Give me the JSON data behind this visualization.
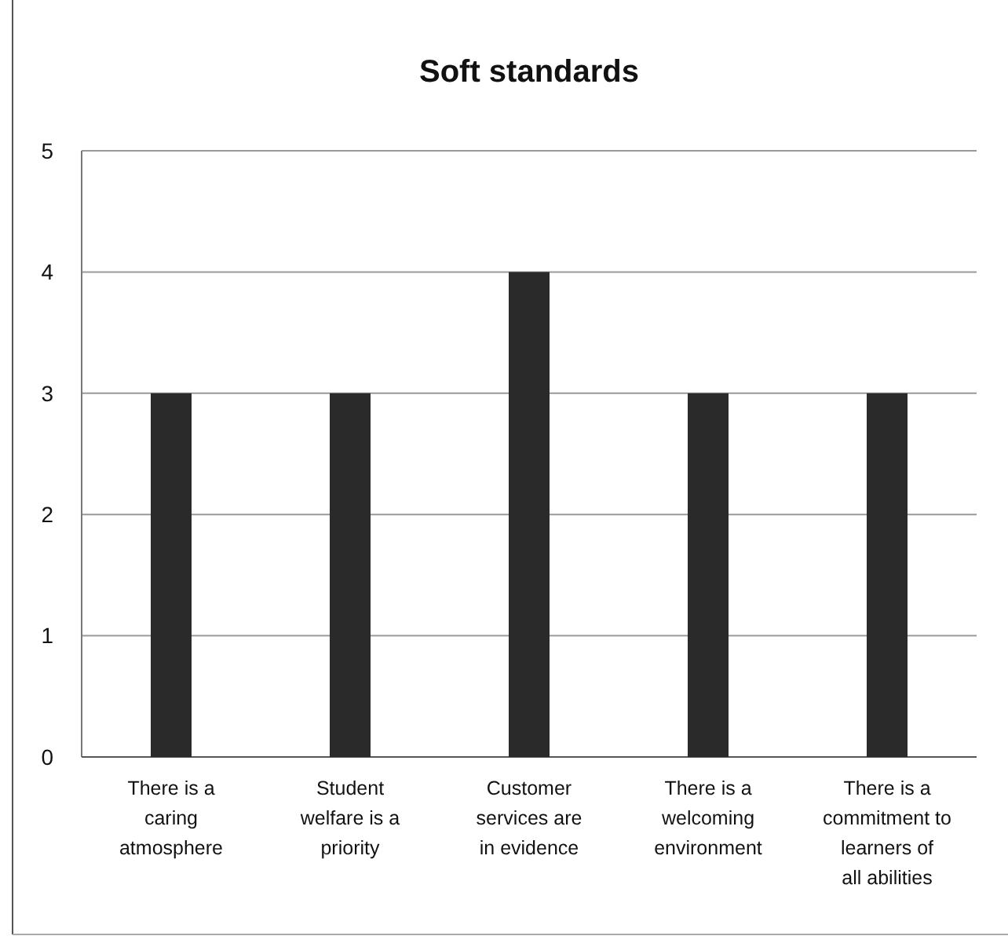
{
  "chart_data": {
    "type": "bar",
    "title": "Soft standards",
    "categories": [
      "There is a caring atmosphere",
      "Student welfare is a priority",
      "Customer services are in evidence",
      "There is a welcoming environment",
      "There is a commitment to learners of all abilities"
    ],
    "values": [
      3,
      3,
      4,
      3,
      3
    ],
    "color": "#2a2a2a",
    "ylim": [
      0,
      5
    ],
    "yticks": [
      0,
      1,
      2,
      3,
      4,
      5
    ],
    "grid": "y"
  }
}
